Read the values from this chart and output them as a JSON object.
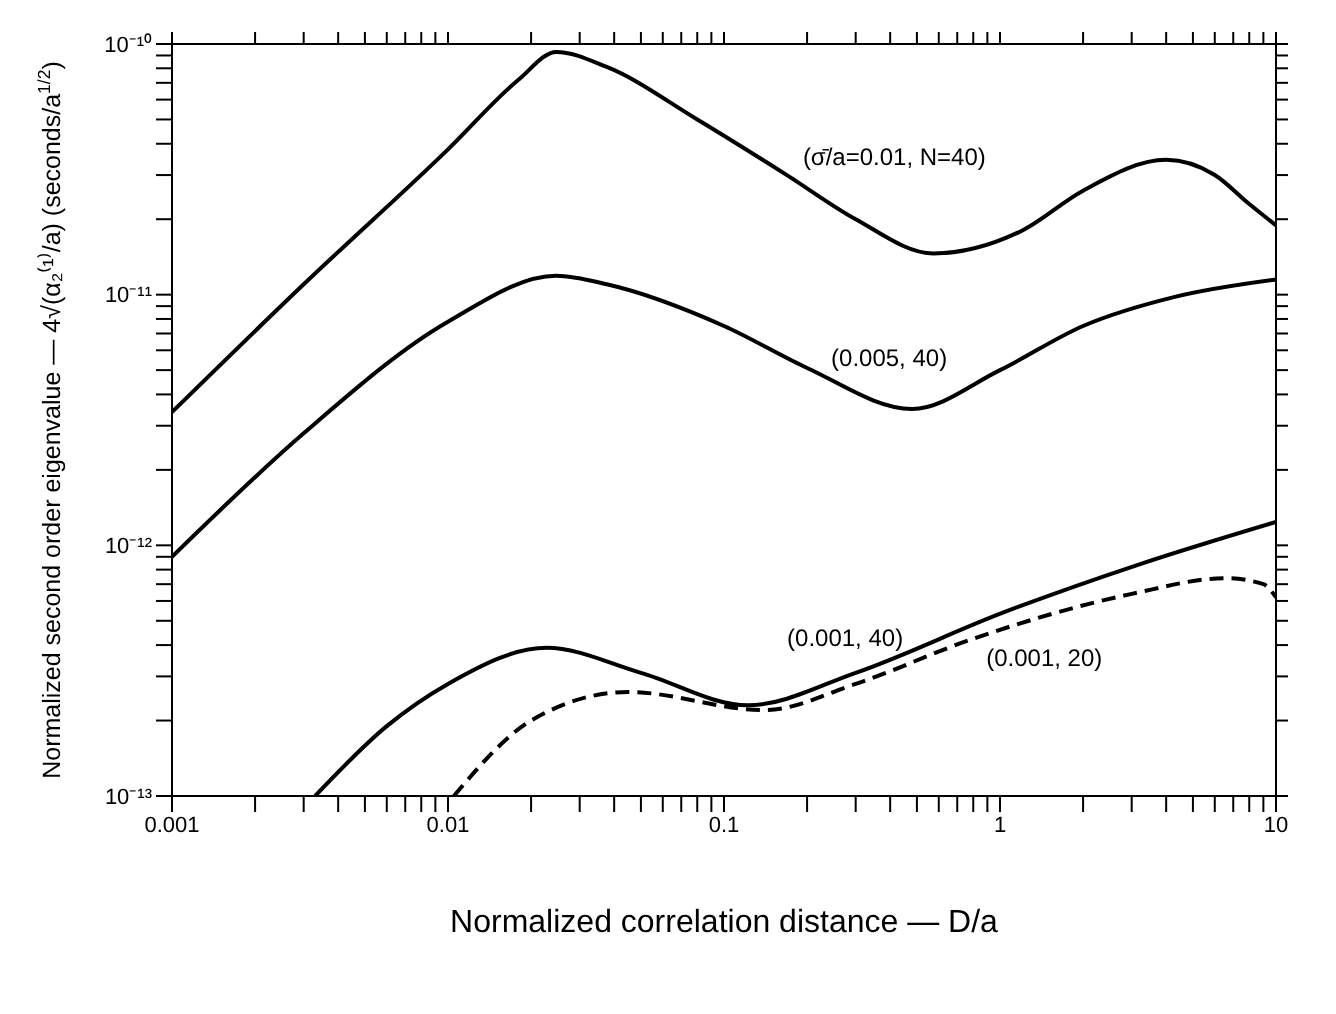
{
  "chart_data": {
    "type": "line",
    "xlabel": "Normalized correlation distance — D/a",
    "ylabel": "Normalized second order eigenvalue — 4√(α₂⁽¹⁾/a)   (seconds/a$^{1/2}$)",
    "log": "xy",
    "marker": "none",
    "xlim": [
      0.001,
      10
    ],
    "ylim": [
      1e-13,
      1e-10
    ],
    "xticks": [
      {
        "value": 0.001,
        "label": "0.001"
      },
      {
        "value": 0.002,
        "label": null
      },
      {
        "value": 0.003,
        "label": null
      },
      {
        "value": 0.004,
        "label": null
      },
      {
        "value": 0.005,
        "label": null
      },
      {
        "value": 0.006,
        "label": null
      },
      {
        "value": 0.007,
        "label": null
      },
      {
        "value": 0.008,
        "label": null
      },
      {
        "value": 0.009,
        "label": null
      },
      {
        "value": 0.01,
        "label": "0.01"
      },
      {
        "value": 0.02,
        "label": null
      },
      {
        "value": 0.03,
        "label": null
      },
      {
        "value": 0.04,
        "label": null
      },
      {
        "value": 0.05,
        "label": null
      },
      {
        "value": 0.06,
        "label": null
      },
      {
        "value": 0.07,
        "label": null
      },
      {
        "value": 0.08,
        "label": null
      },
      {
        "value": 0.09,
        "label": null
      },
      {
        "value": 0.1,
        "label": "0.1"
      },
      {
        "value": 0.2,
        "label": null
      },
      {
        "value": 0.3,
        "label": null
      },
      {
        "value": 0.4,
        "label": null
      },
      {
        "value": 0.5,
        "label": null
      },
      {
        "value": 0.6,
        "label": null
      },
      {
        "value": 0.7,
        "label": null
      },
      {
        "value": 0.8,
        "label": null
      },
      {
        "value": 0.9,
        "label": null
      },
      1,
      {
        "value": 2,
        "label": null
      },
      {
        "value": 3,
        "label": null
      },
      {
        "value": 4,
        "label": null
      },
      {
        "value": 5,
        "label": null
      },
      {
        "value": 6,
        "label": null
      },
      {
        "value": 7,
        "label": null
      },
      {
        "value": 8,
        "label": null
      },
      {
        "value": 9,
        "label": null
      },
      10
    ],
    "yticks": [
      {
        "value": 1e-13,
        "label": "10⁻¹³"
      },
      {
        "value": 2e-13,
        "label": null
      },
      {
        "value": 3e-13,
        "label": null
      },
      {
        "value": 4e-13,
        "label": null
      },
      {
        "value": 5e-13,
        "label": null
      },
      {
        "value": 6e-13,
        "label": null
      },
      {
        "value": 7e-13,
        "label": null
      },
      {
        "value": 8e-13,
        "label": null
      },
      {
        "value": 9e-13,
        "label": null
      },
      {
        "value": 1e-12,
        "label": "10⁻¹²"
      },
      {
        "value": 2e-12,
        "label": null
      },
      {
        "value": 3e-12,
        "label": null
      },
      {
        "value": 4e-12,
        "label": null
      },
      {
        "value": 5e-12,
        "label": null
      },
      {
        "value": 6e-12,
        "label": null
      },
      {
        "value": 7e-12,
        "label": null
      },
      {
        "value": 8e-12,
        "label": null
      },
      {
        "value": 9e-12,
        "label": null
      },
      {
        "value": 1e-11,
        "label": "10⁻¹¹"
      },
      {
        "value": 2e-11,
        "label": null
      },
      {
        "value": 3e-11,
        "label": null
      },
      {
        "value": 4e-11,
        "label": null
      },
      {
        "value": 5e-11,
        "label": null
      },
      {
        "value": 6e-11,
        "label": null
      },
      {
        "value": 7e-11,
        "label": null
      },
      {
        "value": 8e-11,
        "label": null
      },
      {
        "value": 9e-11,
        "label": null
      },
      {
        "value": 1e-10,
        "label": "10⁻¹⁰"
      }
    ],
    "series": [
      {
        "color": "#000000",
        "line_style": "solid",
        "x": [
          0.001,
          0.003,
          0.01,
          0.018,
          0.0247,
          0.0376,
          0.08,
          0.169,
          0.3,
          0.573,
          1.2,
          2,
          4,
          6,
          8,
          10
        ],
        "values": [
          3.4e-12,
          1.1e-11,
          3.8e-11,
          7.2e-11,
          9.3e-11,
          8.1e-11,
          5e-11,
          3e-11,
          2e-11,
          1.46e-11,
          1.8e-11,
          2.6e-11,
          3.45e-11,
          3e-11,
          2.3e-11,
          1.89e-11
        ]
      },
      {
        "color": "#000000",
        "line_style": "solid",
        "x": [
          0.001,
          0.003,
          0.01,
          0.0247,
          0.0376,
          0.1,
          0.2,
          0.48,
          1,
          2,
          4.3,
          10
        ],
        "values": [
          9e-13,
          2.8e-12,
          7.8e-12,
          1.19e-11,
          1.1e-11,
          7.5e-12,
          5.1e-12,
          3.5e-12,
          5e-12,
          7.5e-12,
          9.8e-12,
          1.15e-11
        ]
      },
      {
        "color": "#000000",
        "line_style": "solid",
        "x": [
          0.0033,
          0.006,
          0.01,
          0.0228,
          0.05,
          0.122,
          0.3,
          1.03,
          3.2,
          10
        ],
        "values": [
          1e-13,
          1.9e-13,
          2.8e-13,
          3.9e-13,
          3.1e-13,
          2.3e-13,
          3.1e-13,
          5.4e-13,
          8.4e-13,
          1.24e-12
        ]
      },
      {
        "color": "#000000",
        "line_style": "dashed",
        "x": [
          0.0105,
          0.02,
          0.045,
          0.14,
          0.3,
          0.78,
          3,
          6.6,
          9,
          10
        ],
        "values": [
          1e-13,
          2e-13,
          2.6e-13,
          2.2e-13,
          2.8e-13,
          4.2e-13,
          6.4e-13,
          7.4e-13,
          7e-13,
          6.2e-13
        ]
      }
    ],
    "annotations": [
      {
        "text": "(σ̄/a=0.01, N=40)",
        "x": 0.169,
        "y": 3e-11
      },
      {
        "text": "(0.005, 40)",
        "x": 0.2,
        "y": 5.1e-12
      },
      {
        "text": "(0.001, 40)",
        "x": 0.2,
        "y": 2.8e-13
      },
      {
        "text": "(0.001, 20)",
        "x": 0.78,
        "y": 4.2e-13
      }
    ]
  }
}
